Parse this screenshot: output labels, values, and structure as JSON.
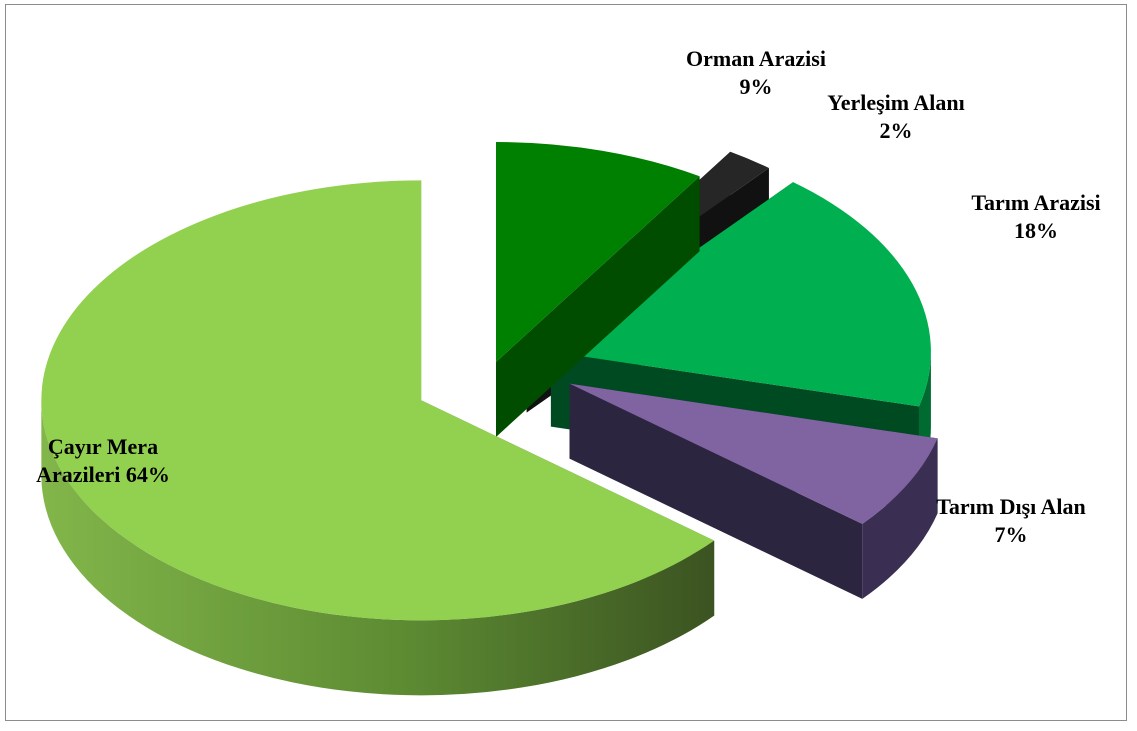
{
  "chart_data": {
    "type": "pie",
    "title": "",
    "slices": [
      {
        "label": "Çayır Mera Arazileri",
        "value": 64,
        "color": "#92d050",
        "side_dark": "#3e5a23",
        "side_light": "#7fb34a"
      },
      {
        "label": "Orman Arazisi",
        "value": 9,
        "color": "#008000",
        "side_dark": "#004d00",
        "side_light": "#006b00"
      },
      {
        "label": "Yerleşim Alanı",
        "value": 2,
        "color": "#262626",
        "side_dark": "#111111",
        "side_light": "#1f1f1f"
      },
      {
        "label": "Tarım Arazisi",
        "value": 18,
        "color": "#00b050",
        "side_dark": "#004a22",
        "side_light": "#006b31"
      },
      {
        "label": "Tarım Dışı Alan",
        "value": 7,
        "color": "#8064a2",
        "side_dark": "#2c2540",
        "side_light": "#3a2f52"
      }
    ]
  },
  "labels": {
    "cayir_line1": "Çayır Mera",
    "cayir_line2": "Arazileri 64%",
    "orman_line1": "Orman Arazisi",
    "orman_line2": "9%",
    "yerlesim_line1": "Yerleşim Alanı",
    "yerlesim_line2": "2%",
    "tarim_line1": "Tarım Arazisi",
    "tarim_line2": "18%",
    "tarimdisi_line1": "Tarım Dışı Alan",
    "tarimdisi_line2": "7%"
  }
}
